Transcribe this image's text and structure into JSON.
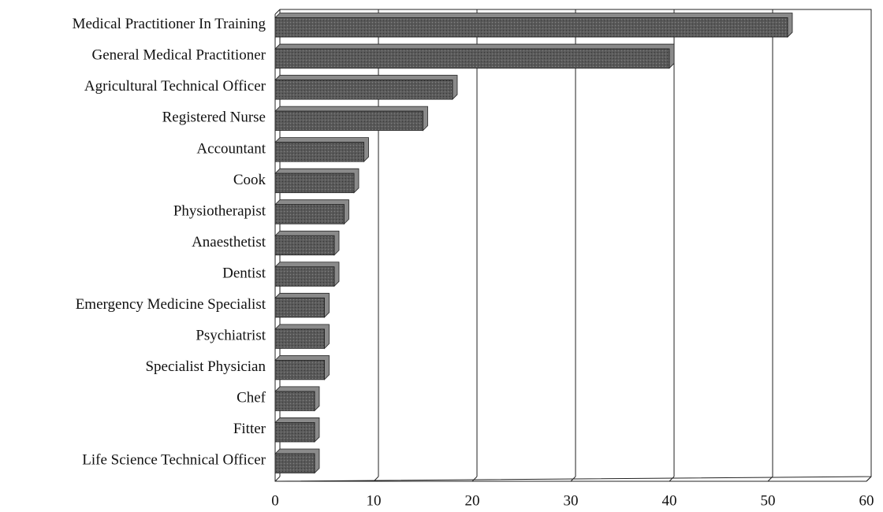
{
  "chart_data": {
    "type": "hbar",
    "categories": [
      "Medical Practitioner In Training",
      "General Medical Practitioner",
      "Agricultural Technical Officer",
      "Registered Nurse",
      "Accountant",
      "Cook",
      "Physiotherapist",
      "Anaesthetist",
      "Dentist",
      "Emergency Medicine Specialist",
      "Psychiatrist",
      "Specialist Physician",
      "Chef",
      "Fitter",
      "Life Science Technical Officer"
    ],
    "values": [
      52,
      40,
      18,
      15,
      9,
      8,
      7,
      6,
      6,
      5,
      5,
      5,
      4,
      4,
      4
    ],
    "color": "#555555",
    "xlim": [
      0,
      60
    ],
    "xticks": [
      0,
      10,
      20,
      30,
      40,
      50,
      60
    ],
    "grid": true
  }
}
